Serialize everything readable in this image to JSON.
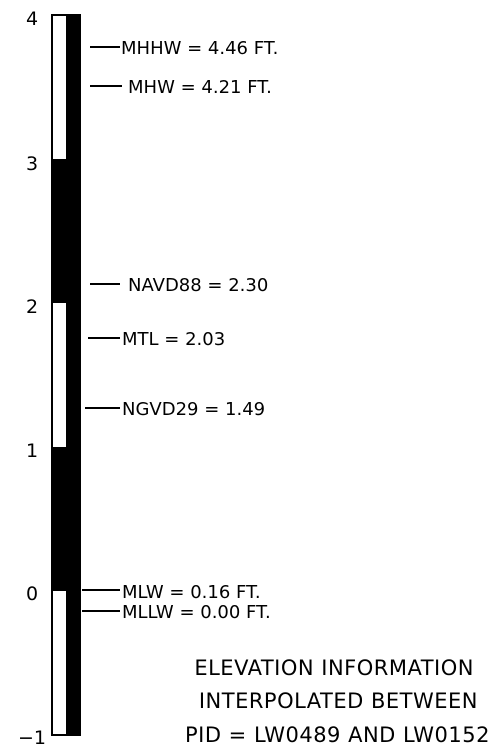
{
  "scale": {
    "ticks": [
      "4",
      "3",
      "2",
      "1",
      "0",
      "−1"
    ],
    "min": -1,
    "max": 4
  },
  "datums": [
    {
      "text": "MHHW = 4.46 FT.",
      "value": 4.46
    },
    {
      "text": "MHW = 4.21 FT.",
      "value": 4.21
    },
    {
      "text": "NAVD88 = 2.30",
      "value": 2.3
    },
    {
      "text": "MTL = 2.03",
      "value": 2.03
    },
    {
      "text": "NGVD29 = 1.49",
      "value": 1.49
    },
    {
      "text": "MLW = 0.16 FT.",
      "value": 0.16
    },
    {
      "text": "MLLW = 0.00 FT.",
      "value": 0.0
    }
  ],
  "note": {
    "line1": "ELEVATION INFORMATION",
    "line2": "INTERPOLATED BETWEEN",
    "line3": "PID = LW0489 AND LW0152"
  },
  "colors": {
    "ink": "#000000",
    "paper": "#ffffff"
  }
}
